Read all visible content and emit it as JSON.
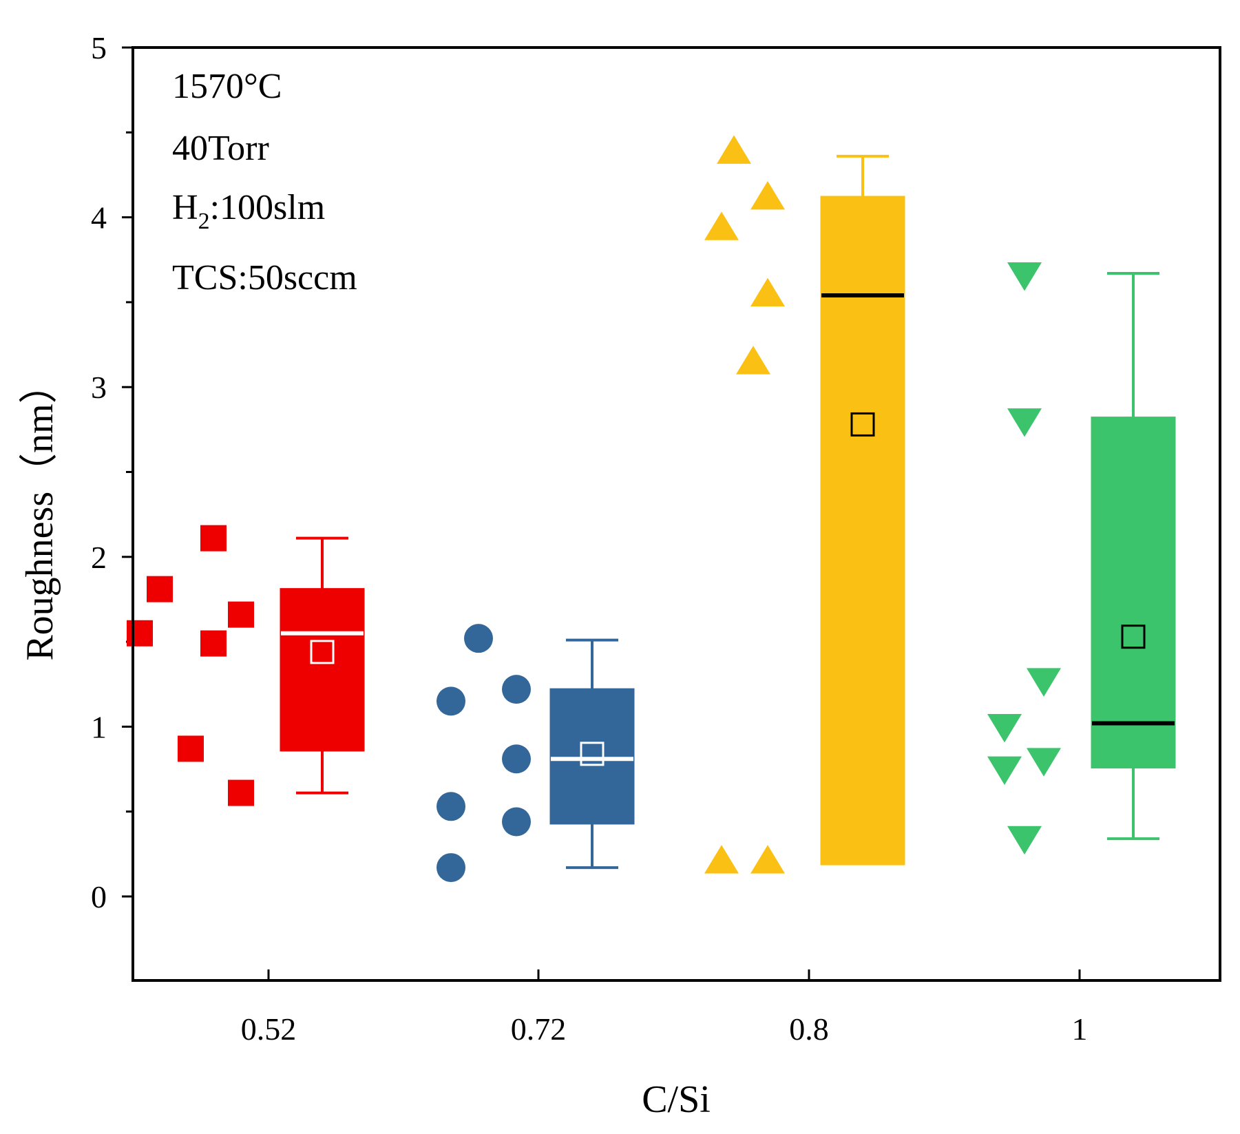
{
  "chart_data": {
    "type": "box",
    "title": "",
    "xlabel": "C/Si",
    "ylabel": "Roughness（nm）",
    "ylim": [
      -0.5,
      5
    ],
    "yticks": [
      0,
      1,
      2,
      3,
      4,
      5
    ],
    "categories": [
      "0.52",
      "0.72",
      "0.8",
      "1"
    ],
    "annotations": [
      "1570°C",
      "40Torr",
      "H",
      "2",
      ":100slm",
      "TCS:50sccm"
    ],
    "groups": [
      {
        "name": "0.52",
        "color": "#ee0000",
        "marker": "square",
        "median_color": "#ffffff",
        "mean_color": "#ffffff",
        "points": [
          2.11,
          1.81,
          1.66,
          1.55,
          1.49,
          0.87,
          0.61
        ],
        "box": {
          "q1": 0.86,
          "median": 1.55,
          "q3": 1.81,
          "whisker_low": 0.61,
          "whisker_high": 2.11,
          "mean": 1.44
        }
      },
      {
        "name": "0.72",
        "color": "#336699",
        "marker": "circle",
        "median_color": "#ffffff",
        "mean_color": "#ffffff",
        "points": [
          1.52,
          1.22,
          1.15,
          0.81,
          0.53,
          0.44,
          0.17
        ],
        "box": {
          "q1": 0.43,
          "median": 0.81,
          "q3": 1.22,
          "whisker_low": 0.17,
          "whisker_high": 1.51,
          "mean": 0.84
        }
      },
      {
        "name": "0.8",
        "color": "#fbc014",
        "marker": "triangle-up",
        "median_color": "#000000",
        "mean_color": "#000000",
        "points": [
          4.39,
          4.12,
          3.94,
          3.55,
          3.15,
          0.21,
          0.21
        ],
        "box": {
          "q1": 0.19,
          "median": 3.54,
          "q3": 4.12,
          "whisker_low": 0.19,
          "whisker_high": 4.36,
          "mean": 2.78
        }
      },
      {
        "name": "1",
        "color": "#3cc46c",
        "marker": "triangle-down",
        "median_color": "#000000",
        "mean_color": "#000000",
        "points": [
          3.66,
          2.8,
          1.27,
          1.0,
          0.8,
          0.75,
          0.34
        ],
        "box": {
          "q1": 0.76,
          "median": 1.02,
          "q3": 2.82,
          "whisker_low": 0.34,
          "whisker_high": 3.67,
          "mean": 1.53
        }
      }
    ]
  }
}
